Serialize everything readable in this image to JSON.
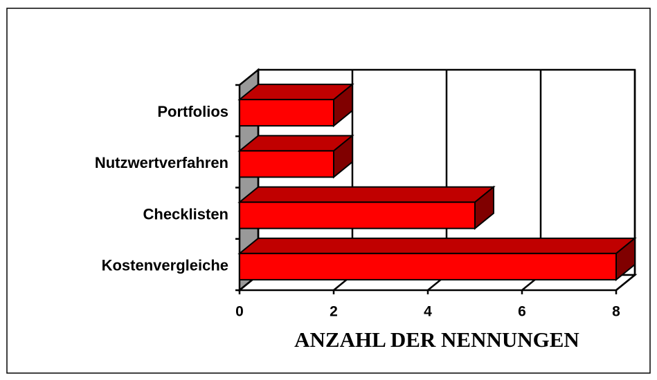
{
  "chart_data": {
    "type": "bar",
    "orientation": "horizontal",
    "three_d": true,
    "categories": [
      "Kostenvergleiche",
      "Checklisten",
      "Nutzwertverfahren",
      "Portfolios"
    ],
    "values": [
      8,
      5,
      2,
      2
    ],
    "color": "#ff0000",
    "x_label": "ANZAHL DER NENNUNGEN",
    "xlim": [
      0,
      8
    ],
    "xticks": [
      0,
      2,
      4,
      6,
      8
    ],
    "grid": true
  }
}
